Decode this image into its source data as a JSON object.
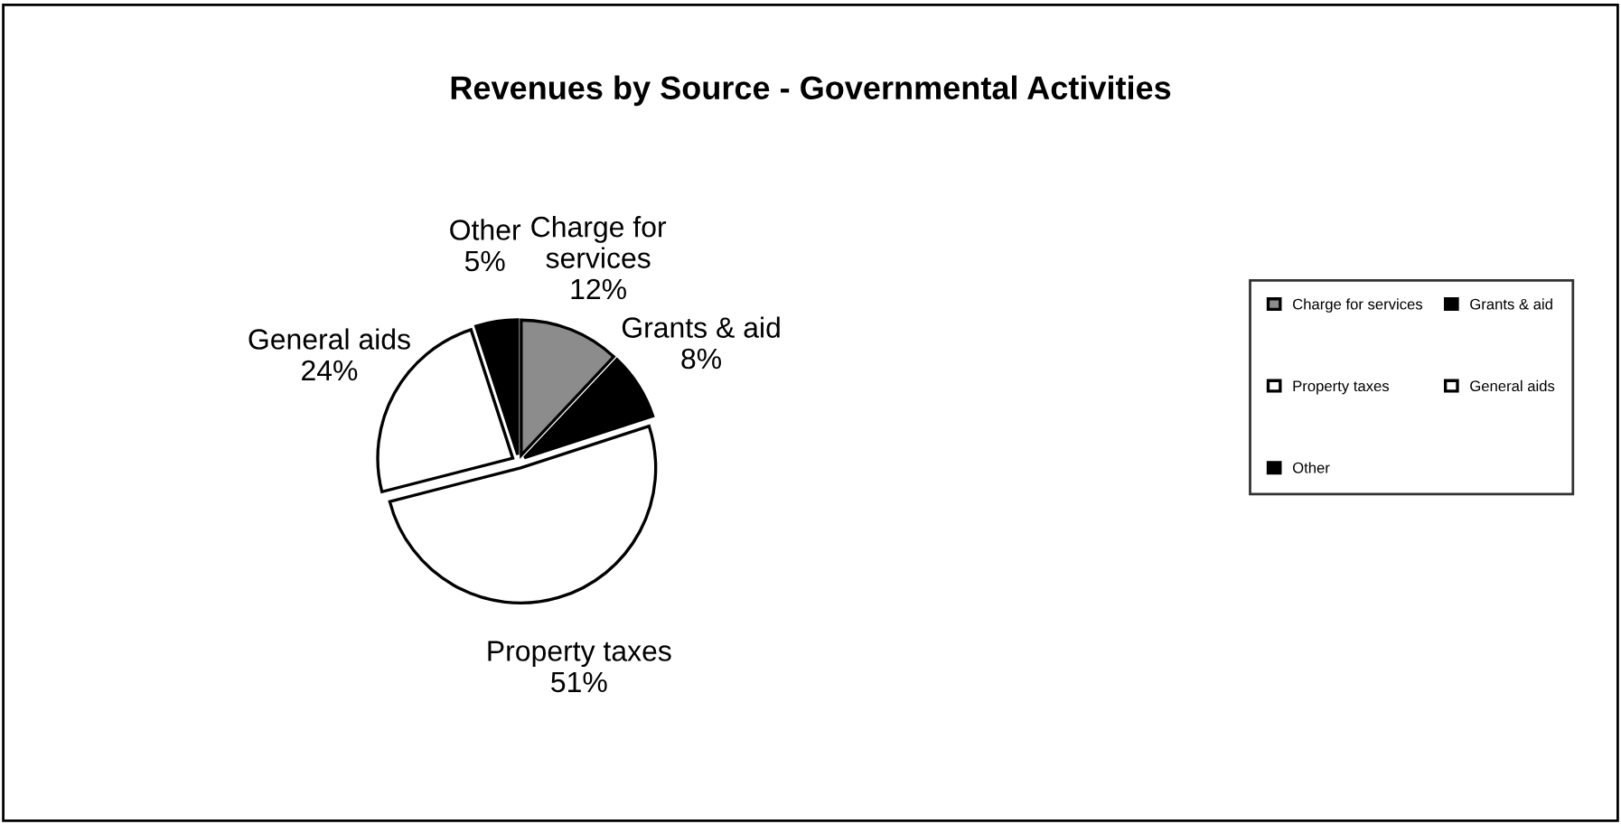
{
  "chart_data": {
    "type": "pie",
    "title": "Revenues by Source - Governmental Activities",
    "categories": [
      "Charge for services",
      "Grants & aid",
      "Property taxes",
      "General aids",
      "Other"
    ],
    "values": [
      12,
      8,
      51,
      24,
      5
    ],
    "value_labels": [
      "12%",
      "8%",
      "51%",
      "24%",
      "5%"
    ],
    "colors": [
      "#8c8c8c",
      "#000000",
      "#ffffff",
      "#ffffff",
      "#000000"
    ],
    "legend": "right"
  }
}
